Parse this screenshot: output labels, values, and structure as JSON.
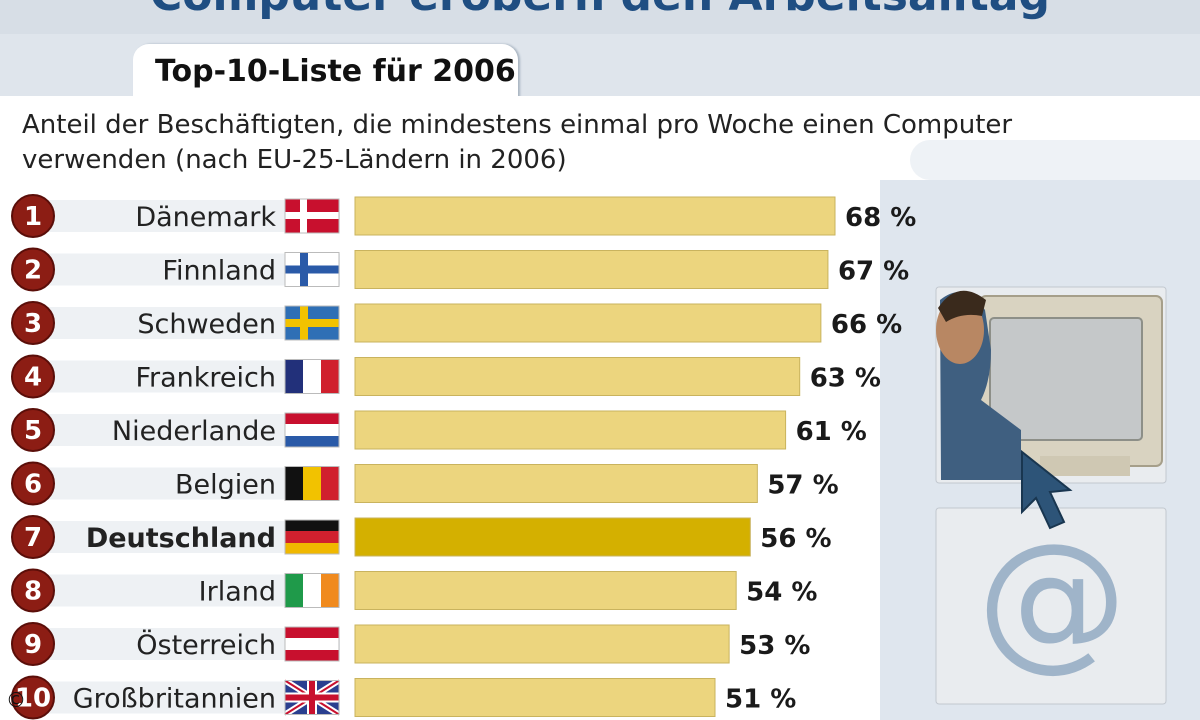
{
  "header": {
    "title": "Computer erobern den Arbeitsalltag"
  },
  "tab": {
    "label": "Top-10-Liste für 2006"
  },
  "subtitle": "Anteil der Beschäftigten, die mindestens einmal pro Woche einen Computer verwenden (nach EU-25-Ländern in 2006)",
  "copyright": "©",
  "colors": {
    "bar": "#ecd57e",
    "bar_highlight": "#d4b000",
    "rank_circle": "#8c1d14"
  },
  "chart_data": {
    "type": "bar",
    "orientation": "horizontal",
    "ranks": [
      "1",
      "2",
      "3",
      "4",
      "5",
      "6",
      "7",
      "8",
      "9",
      "10"
    ],
    "categories": [
      "Dänemark",
      "Finnland",
      "Schweden",
      "Frankreich",
      "Niederlande",
      "Belgien",
      "Deutschland",
      "Irland",
      "Österreich",
      "Großbritannien"
    ],
    "values": [
      68,
      67,
      66,
      63,
      61,
      57,
      56,
      54,
      53,
      51
    ],
    "value_labels": [
      "68 %",
      "67 %",
      "66 %",
      "63 %",
      "61 %",
      "57 %",
      "56 %",
      "54 %",
      "53 %",
      "51 %"
    ],
    "highlight": "Deutschland",
    "unit": "%",
    "xlim": [
      0,
      68
    ]
  }
}
